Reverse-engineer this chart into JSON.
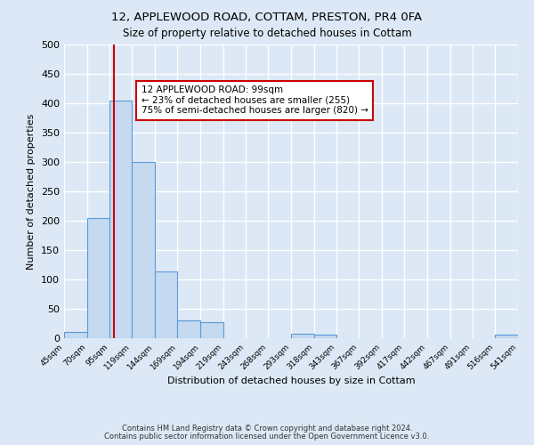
{
  "title_line1": "12, APPLEWOOD ROAD, COTTAM, PRESTON, PR4 0FA",
  "title_line2": "Size of property relative to detached houses in Cottam",
  "xlabel": "Distribution of detached houses by size in Cottam",
  "ylabel": "Number of detached properties",
  "bin_edges": [
    45,
    70,
    95,
    119,
    144,
    169,
    194,
    219,
    243,
    268,
    293,
    318,
    343,
    367,
    392,
    417,
    442,
    467,
    491,
    516,
    541
  ],
  "bar_heights": [
    10,
    205,
    405,
    300,
    113,
    30,
    27,
    0,
    0,
    0,
    8,
    6,
    0,
    0,
    0,
    0,
    0,
    0,
    0,
    6
  ],
  "tick_labels": [
    "45sqm",
    "70sqm",
    "95sqm",
    "119sqm",
    "144sqm",
    "169sqm",
    "194sqm",
    "219sqm",
    "243sqm",
    "268sqm",
    "293sqm",
    "318sqm",
    "343sqm",
    "367sqm",
    "392sqm",
    "417sqm",
    "442sqm",
    "467sqm",
    "491sqm",
    "516sqm",
    "541sqm"
  ],
  "bar_color": "#c5d9f0",
  "bar_edge_color": "#5b9bd5",
  "vline_x": 99,
  "vline_color": "#cc0000",
  "ylim": [
    0,
    500
  ],
  "yticks": [
    0,
    50,
    100,
    150,
    200,
    250,
    300,
    350,
    400,
    450,
    500
  ],
  "annotation_title": "12 APPLEWOOD ROAD: 99sqm",
  "annotation_line1": "← 23% of detached houses are smaller (255)",
  "annotation_line2": "75% of semi-detached houses are larger (820) →",
  "bg_color": "#dce8f5",
  "grid_color": "#ffffff",
  "footer_line1": "Contains HM Land Registry data © Crown copyright and database right 2024.",
  "footer_line2": "Contains public sector information licensed under the Open Government Licence v3.0."
}
